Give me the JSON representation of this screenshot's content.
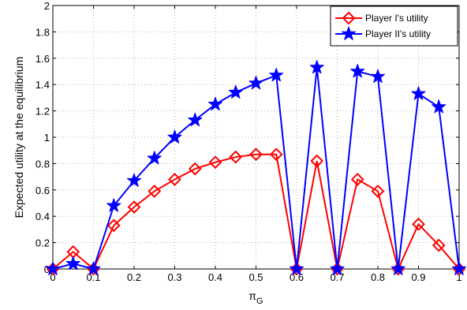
{
  "chart_data": {
    "type": "line",
    "title": "",
    "xlabel_main": "π",
    "xlabel_sub": "G",
    "ylabel": "Expected utility at the equilibrium",
    "xlim": [
      0,
      1
    ],
    "ylim": [
      0,
      2
    ],
    "x_ticks": [
      0,
      0.1,
      0.2,
      0.3,
      0.4,
      0.5,
      0.6,
      0.7,
      0.8,
      0.9,
      1
    ],
    "x_tick_labels": [
      "0",
      "0.1",
      "0.2",
      "0.3",
      "0.4",
      "0.5",
      "0.6",
      "0.7",
      "0.8",
      "0.9",
      "1"
    ],
    "y_ticks": [
      0,
      0.2,
      0.4,
      0.6,
      0.8,
      1,
      1.2,
      1.4,
      1.6,
      1.8,
      2
    ],
    "y_tick_labels": [
      "0",
      "0.2",
      "0.4",
      "0.6",
      "0.8",
      "1",
      "1.2",
      "1.4",
      "1.6",
      "1.8",
      "2"
    ],
    "grid": true,
    "legend_position": "top-right",
    "x": [
      0,
      0.05,
      0.1,
      0.15,
      0.2,
      0.25,
      0.3,
      0.35,
      0.4,
      0.45,
      0.5,
      0.55,
      0.6,
      0.65,
      0.7,
      0.75,
      0.8,
      0.85,
      0.9,
      0.95,
      1
    ],
    "series": [
      {
        "name": "Player I's utility",
        "color": "#ff0000",
        "marker": "diamond",
        "values": [
          0,
          0.13,
          0,
          0.33,
          0.47,
          0.59,
          0.68,
          0.76,
          0.81,
          0.85,
          0.87,
          0.87,
          0,
          0.82,
          0,
          0.68,
          0.59,
          0,
          0.34,
          0.18,
          0
        ]
      },
      {
        "name": "Player II's utility",
        "color": "#0000ff",
        "marker": "star",
        "values": [
          0,
          0.04,
          0,
          0.48,
          0.67,
          0.84,
          1.0,
          1.13,
          1.25,
          1.34,
          1.41,
          1.47,
          0,
          1.53,
          0,
          1.5,
          1.46,
          0,
          1.33,
          1.23,
          0
        ]
      }
    ]
  }
}
